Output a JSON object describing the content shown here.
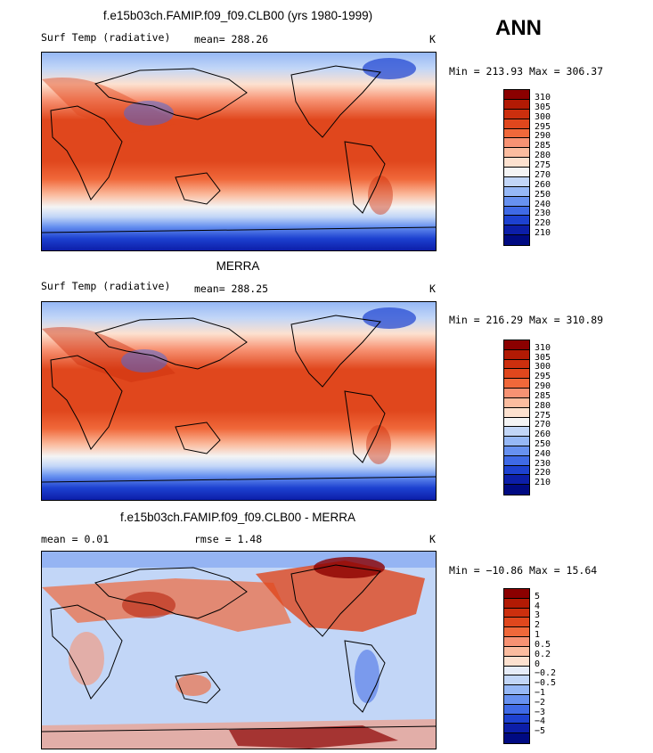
{
  "season": "ANN",
  "panels": [
    {
      "title": "f.e15b03ch.FAMIP.f09_f09.CLB00 (yrs 1980-1999)",
      "variable": "Surf Temp (radiative)",
      "mean": "mean=  288.26",
      "units": "K",
      "minmax": "Min = 213.93  Max = 306.37",
      "levels": [
        "310",
        "305",
        "300",
        "295",
        "290",
        "285",
        "280",
        "275",
        "270",
        "260",
        "250",
        "240",
        "230",
        "220",
        "210"
      ],
      "colors": [
        "#8b0000",
        "#b21a04",
        "#cc2f0e",
        "#e0471d",
        "#f0683a",
        "#f79273",
        "#fbbc9f",
        "#fde1cf",
        "#f4f4f4",
        "#c2d6f7",
        "#96b8f6",
        "#6791f0",
        "#3f6ae6",
        "#1d41d0",
        "#0c1ea8",
        "#000a82"
      ]
    },
    {
      "title": "MERRA",
      "variable": "Surf Temp (radiative)",
      "mean": "mean=  288.25",
      "units": "K",
      "minmax": "Min = 216.29  Max = 310.89",
      "levels": [
        "310",
        "305",
        "300",
        "295",
        "290",
        "285",
        "280",
        "275",
        "270",
        "260",
        "250",
        "240",
        "230",
        "220",
        "210"
      ],
      "colors": [
        "#8b0000",
        "#b21a04",
        "#cc2f0e",
        "#e0471d",
        "#f0683a",
        "#f79273",
        "#fbbc9f",
        "#fde1cf",
        "#f4f4f4",
        "#c2d6f7",
        "#96b8f6",
        "#6791f0",
        "#3f6ae6",
        "#1d41d0",
        "#0c1ea8",
        "#000a82"
      ]
    },
    {
      "title": "f.e15b03ch.FAMIP.f09_f09.CLB00 - MERRA",
      "mean": "mean =   0.01",
      "rmse": "rmse =   1.48",
      "units": "K",
      "minmax": "Min = −10.86  Max =  15.64",
      "levels": [
        "5",
        "4",
        "3",
        "2",
        "1",
        "0.5",
        "0.2",
        "0",
        "−0.2",
        "−0.5",
        "−1",
        "−2",
        "−3",
        "−4",
        "−5"
      ],
      "colors": [
        "#8b0000",
        "#b21a04",
        "#cc2f0e",
        "#e0471d",
        "#f0683a",
        "#f79273",
        "#fbbc9f",
        "#fde1cf",
        "#e6ecf8",
        "#c2d6f7",
        "#96b8f6",
        "#6791f0",
        "#3f6ae6",
        "#1d41d0",
        "#0c1ea8",
        "#000a82"
      ]
    }
  ]
}
